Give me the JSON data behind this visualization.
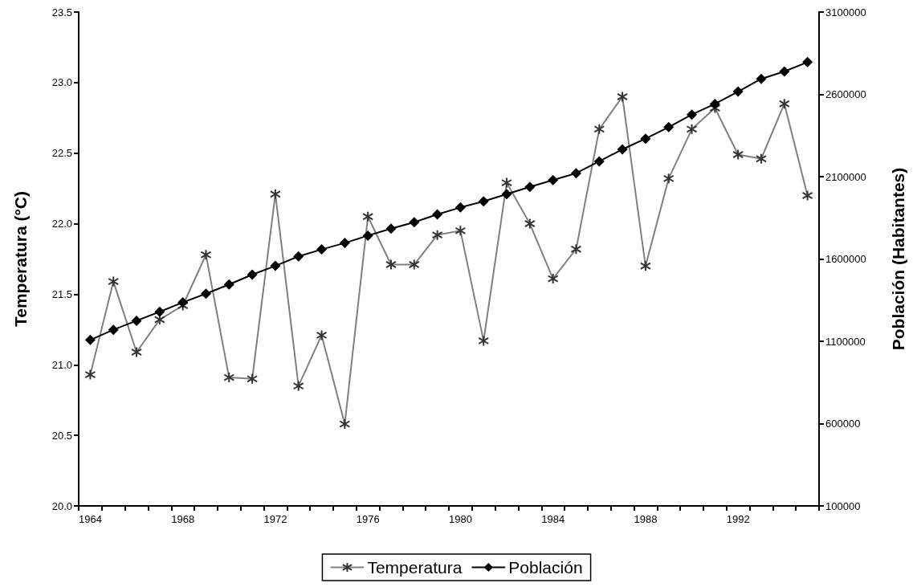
{
  "chart_data": {
    "type": "line",
    "ylabel": "Temperatura (°C)",
    "y2label": "Población (Habitantes)",
    "categories": [
      "1964",
      null,
      null,
      null,
      "1968",
      null,
      null,
      null,
      "1972",
      null,
      null,
      null,
      "1976",
      null,
      null,
      null,
      "1980",
      null,
      null,
      null,
      "1984",
      null,
      null,
      null,
      "1988",
      null,
      null,
      null,
      "1992",
      null,
      null,
      null
    ],
    "series": [
      {
        "name": "Temperatura",
        "color": "#808080",
        "marker": "cross",
        "values": [
          20.93,
          21.59,
          21.09,
          21.32,
          21.42,
          21.78,
          20.91,
          20.9,
          22.21,
          20.85,
          21.21,
          20.58,
          22.05,
          21.71,
          21.71,
          21.92,
          21.95,
          21.17,
          22.29,
          22.0,
          21.61,
          21.82,
          22.67,
          22.9,
          21.7,
          22.32,
          22.67,
          22.82,
          22.49,
          22.46,
          22.85,
          22.2
        ]
      },
      {
        "name": "Población",
        "color": "#000000",
        "marker": "diamond",
        "axis": "y2",
        "values": [
          1108000,
          1170000,
          1225000,
          1279000,
          1336000,
          1389000,
          1445000,
          1505000,
          1558000,
          1616000,
          1658000,
          1697000,
          1742000,
          1784000,
          1823000,
          1871000,
          1913000,
          1950000,
          1994000,
          2038000,
          2079000,
          2121000,
          2193000,
          2266000,
          2331000,
          2401000,
          2477000,
          2542000,
          2617000,
          2694000,
          2739000,
          2796000
        ]
      }
    ],
    "ylim": [
      20,
      23.5
    ],
    "yticks": [
      {
        "value": 20,
        "label": "20.0"
      },
      {
        "value": 20.5,
        "label": "20.5"
      },
      {
        "value": 21,
        "label": "21.0"
      },
      {
        "value": 21.5,
        "label": "21.5"
      },
      {
        "value": 22,
        "label": "22.0"
      },
      {
        "value": 22.5,
        "label": "22.5"
      },
      {
        "value": 23,
        "label": "23.0"
      },
      {
        "value": 23.5,
        "label": "23.5"
      }
    ],
    "y2lim": [
      100000,
      3100000
    ],
    "y2ticks": [
      100000,
      600000,
      1100000,
      1600000,
      2100000,
      2600000,
      3100000
    ],
    "grid": false,
    "legend": "bottom",
    "line_style": "solid"
  }
}
